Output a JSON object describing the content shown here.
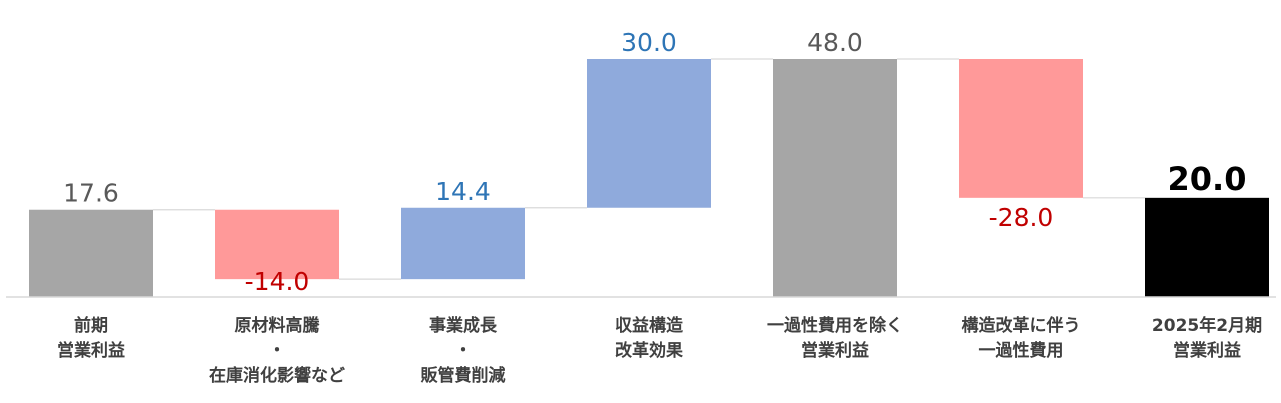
{
  "chart_data": {
    "type": "waterfall",
    "categories": [
      [
        "前期",
        "営業利益"
      ],
      [
        "原材料高騰",
        "・",
        "在庫消化影響など"
      ],
      [
        "事業成長",
        "・",
        "販管費削減"
      ],
      [
        "収益構造",
        "改革効果"
      ],
      [
        "一過性費用を除く",
        "営業利益"
      ],
      [
        "構造改革に伴う",
        "一過性費用"
      ],
      [
        "2025年2月期",
        "営業利益"
      ]
    ],
    "bars": [
      {
        "kind": "total",
        "start": 0,
        "end": 17.6,
        "label": "17.6",
        "color": "#a6a6a6",
        "label_color": "#595959"
      },
      {
        "kind": "change",
        "start": 17.6,
        "end": 3.6,
        "label": "-14.0",
        "color": "#ff9999",
        "label_color": "#c00000"
      },
      {
        "kind": "change",
        "start": 3.6,
        "end": 18.0,
        "label": "14.4",
        "color": "#8faadc",
        "label_color": "#2e75b6"
      },
      {
        "kind": "change",
        "start": 18.0,
        "end": 48.0,
        "label": "30.0",
        "color": "#8faadc",
        "label_color": "#2e75b6"
      },
      {
        "kind": "total",
        "start": 0,
        "end": 48.0,
        "label": "48.0",
        "color": "#a6a6a6",
        "label_color": "#595959"
      },
      {
        "kind": "change",
        "start": 48.0,
        "end": 20.0,
        "label": "-28.0",
        "color": "#ff9999",
        "label_color": "#c00000"
      },
      {
        "kind": "total",
        "start": 0,
        "end": 20.0,
        "label": "20.0",
        "color": "#000000",
        "label_color": "#000000",
        "bold": true
      }
    ],
    "ylim": [
      0,
      48
    ],
    "grid": false,
    "legend": "none"
  }
}
